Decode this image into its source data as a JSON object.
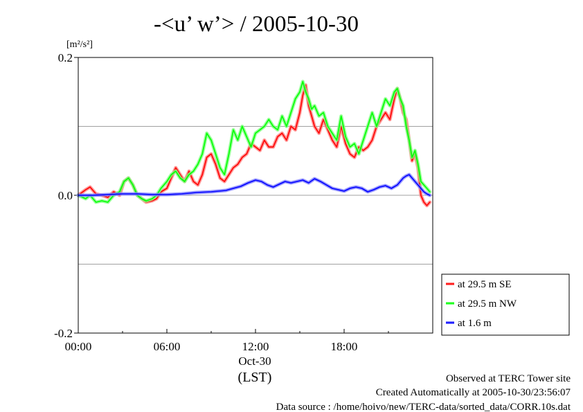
{
  "chart_data": {
    "type": "line",
    "title": "-<u’ w’> / 2005-10-30",
    "ylabel": "[m²/s²]",
    "ylim": [
      -0.2,
      0.2
    ],
    "xlim": [
      0,
      24
    ],
    "yticks": [
      "0.2",
      "0.0",
      "-0.2"
    ],
    "yticks_values": [
      0.2,
      0.0,
      -0.2
    ],
    "ygrid": [
      0.1,
      -0.1
    ],
    "xticks": [
      "00:00",
      "06:00",
      "12:00",
      "18:00"
    ],
    "xticks_values": [
      0,
      6,
      12,
      18
    ],
    "date_label": "Oct-30",
    "xunit_label": "(LST)",
    "legend_position": "bottom-right",
    "series": [
      {
        "name": "at 29.5 m SE",
        "color": "#ff0000",
        "x": [
          0,
          0.5,
          0.8,
          1.2,
          1.6,
          2.0,
          2.4,
          2.8,
          3.1,
          3.4,
          3.7,
          4.0,
          4.3,
          4.6,
          5.0,
          5.3,
          5.6,
          6.0,
          6.3,
          6.6,
          6.9,
          7.2,
          7.5,
          7.8,
          8.1,
          8.4,
          8.7,
          9.0,
          9.3,
          9.6,
          9.9,
          10.2,
          10.5,
          10.8,
          11.1,
          11.4,
          11.7,
          12.0,
          12.3,
          12.6,
          12.9,
          13.2,
          13.5,
          13.8,
          14.1,
          14.4,
          14.7,
          15.0,
          15.2,
          15.4,
          15.6,
          15.8,
          16.0,
          16.3,
          16.6,
          16.9,
          17.2,
          17.5,
          17.8,
          18.1,
          18.4,
          18.7,
          19.0,
          19.3,
          19.6,
          19.9,
          20.2,
          20.5,
          20.8,
          21.1,
          21.4,
          21.6,
          21.8,
          22.0,
          22.2,
          22.4,
          22.6,
          22.8,
          23.0,
          23.2,
          23.4,
          23.6,
          23.8
        ],
        "y": [
          0.0,
          0.008,
          0.012,
          0.002,
          0.0,
          -0.003,
          0.005,
          0.0,
          0.02,
          0.025,
          0.015,
          0.0,
          -0.005,
          -0.01,
          -0.008,
          -0.005,
          0.005,
          0.01,
          0.025,
          0.04,
          0.03,
          0.02,
          0.035,
          0.02,
          0.015,
          0.03,
          0.055,
          0.06,
          0.045,
          0.025,
          0.02,
          0.03,
          0.04,
          0.045,
          0.055,
          0.06,
          0.075,
          0.07,
          0.065,
          0.08,
          0.07,
          0.07,
          0.085,
          0.09,
          0.08,
          0.1,
          0.095,
          0.12,
          0.145,
          0.16,
          0.13,
          0.115,
          0.1,
          0.09,
          0.11,
          0.095,
          0.08,
          0.07,
          0.1,
          0.075,
          0.06,
          0.055,
          0.07,
          0.065,
          0.07,
          0.08,
          0.1,
          0.11,
          0.12,
          0.11,
          0.14,
          0.155,
          0.14,
          0.12,
          0.11,
          0.08,
          0.05,
          0.06,
          0.04,
          0.0,
          -0.01,
          -0.015,
          -0.01
        ]
      },
      {
        "name": "at 29.5 m NW",
        "color": "#00ff00",
        "x": [
          0,
          0.5,
          0.8,
          1.2,
          1.6,
          2.0,
          2.4,
          2.8,
          3.1,
          3.4,
          3.7,
          4.0,
          4.3,
          4.6,
          5.0,
          5.3,
          5.6,
          6.0,
          6.3,
          6.6,
          6.9,
          7.2,
          7.5,
          7.8,
          8.1,
          8.4,
          8.7,
          9.0,
          9.3,
          9.6,
          9.9,
          10.2,
          10.5,
          10.8,
          11.1,
          11.4,
          11.7,
          12.0,
          12.3,
          12.6,
          12.9,
          13.2,
          13.5,
          13.8,
          14.1,
          14.4,
          14.7,
          15.0,
          15.2,
          15.4,
          15.6,
          15.8,
          16.0,
          16.3,
          16.6,
          16.9,
          17.2,
          17.5,
          17.8,
          18.1,
          18.4,
          18.7,
          19.0,
          19.3,
          19.6,
          19.9,
          20.2,
          20.5,
          20.8,
          21.1,
          21.4,
          21.6,
          21.8,
          22.0,
          22.2,
          22.4,
          22.6,
          22.8,
          23.0,
          23.2,
          23.4,
          23.6,
          23.8
        ],
        "y": [
          0.0,
          -0.005,
          0.0,
          -0.01,
          -0.008,
          -0.01,
          0.0,
          0.005,
          0.02,
          0.025,
          0.015,
          0.0,
          -0.005,
          -0.008,
          -0.005,
          0.0,
          0.01,
          0.02,
          0.03,
          0.035,
          0.025,
          0.02,
          0.03,
          0.035,
          0.045,
          0.06,
          0.09,
          0.08,
          0.06,
          0.04,
          0.03,
          0.06,
          0.095,
          0.08,
          0.1,
          0.085,
          0.07,
          0.09,
          0.095,
          0.1,
          0.11,
          0.1,
          0.095,
          0.115,
          0.1,
          0.12,
          0.14,
          0.15,
          0.165,
          0.15,
          0.14,
          0.125,
          0.13,
          0.115,
          0.12,
          0.1,
          0.09,
          0.08,
          0.115,
          0.085,
          0.07,
          0.075,
          0.06,
          0.08,
          0.1,
          0.12,
          0.1,
          0.12,
          0.14,
          0.13,
          0.15,
          0.155,
          0.14,
          0.13,
          0.1,
          0.08,
          0.055,
          0.065,
          0.045,
          0.02,
          0.015,
          0.01,
          0.005
        ]
      },
      {
        "name": "at 1.6 m",
        "color": "#0000ff",
        "x": [
          0,
          1,
          2,
          3,
          4,
          5,
          6,
          7,
          8,
          9,
          10,
          10.5,
          11,
          11.5,
          12.0,
          12.4,
          12.8,
          13.2,
          13.6,
          14.0,
          14.4,
          14.8,
          15.2,
          15.6,
          16.0,
          16.4,
          16.8,
          17.2,
          17.6,
          18.0,
          18.4,
          18.8,
          19.2,
          19.6,
          20.0,
          20.4,
          20.8,
          21.2,
          21.6,
          22.0,
          22.2,
          22.4,
          22.6,
          22.8,
          23.0,
          23.2,
          23.4,
          23.6,
          23.8
        ],
        "y": [
          0.0,
          0.0,
          0.001,
          0.002,
          0.002,
          0.001,
          0.001,
          0.002,
          0.004,
          0.005,
          0.007,
          0.01,
          0.013,
          0.018,
          0.022,
          0.02,
          0.015,
          0.012,
          0.016,
          0.02,
          0.018,
          0.02,
          0.022,
          0.018,
          0.024,
          0.02,
          0.015,
          0.01,
          0.008,
          0.006,
          0.01,
          0.012,
          0.01,
          0.005,
          0.008,
          0.012,
          0.014,
          0.01,
          0.015,
          0.025,
          0.028,
          0.03,
          0.025,
          0.02,
          0.015,
          0.01,
          0.005,
          0.002,
          0.0
        ]
      }
    ]
  },
  "footer": {
    "line1": "Observed at TERC Tower site",
    "line2": "Created Automatically at 2005-10-30/23:56:07",
    "line3": "Data source : /home/hoivo/new/TERC-data/sorted_data/CORR.10s.dat"
  }
}
